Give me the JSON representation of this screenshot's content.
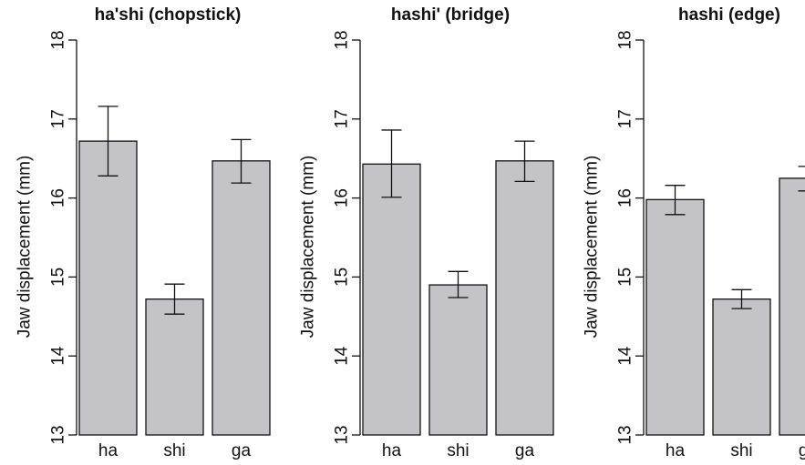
{
  "colors": {
    "bar_fill": "#c4c4c8",
    "bar_stroke": "#111111",
    "axis": "#111111",
    "error_bar": "#111111"
  },
  "chart_data": [
    {
      "type": "bar",
      "title": "ha'shi (chopstick)",
      "ylabel": "Jaw displacement (mm)",
      "xlabel": "",
      "ylim": [
        13,
        18
      ],
      "yticks": [
        13,
        14,
        15,
        16,
        17,
        18
      ],
      "tick_labels": [
        "13",
        "14",
        "15",
        "16",
        "17",
        "18"
      ],
      "categories": [
        "ha",
        "shi",
        "ga"
      ],
      "values": [
        16.72,
        14.72,
        16.47
      ],
      "error_low": [
        16.28,
        14.53,
        16.19
      ],
      "error_high": [
        17.16,
        14.91,
        16.74
      ],
      "grid": false
    },
    {
      "type": "bar",
      "title": "hashi' (bridge)",
      "ylabel": "Jaw displacement (mm)",
      "xlabel": "",
      "ylim": [
        13,
        18
      ],
      "yticks": [
        13,
        14,
        15,
        16,
        17,
        18
      ],
      "tick_labels": [
        "13",
        "14",
        "15",
        "16",
        "17",
        "18"
      ],
      "categories": [
        "ha",
        "shi",
        "ga"
      ],
      "values": [
        16.43,
        14.9,
        16.47
      ],
      "error_low": [
        16.01,
        14.74,
        16.21
      ],
      "error_high": [
        16.86,
        15.07,
        16.72
      ],
      "grid": false
    },
    {
      "type": "bar",
      "title": "hashi (edge)",
      "ylabel": "Jaw displacement (mm)",
      "xlabel": "",
      "ylim": [
        13,
        18
      ],
      "yticks": [
        13,
        14,
        15,
        16,
        17,
        18
      ],
      "tick_labels": [
        "13",
        "14",
        "15",
        "16",
        "17",
        "18"
      ],
      "categories": [
        "ha",
        "shi",
        "ga"
      ],
      "values": [
        15.98,
        14.72,
        16.25
      ],
      "error_low": [
        15.79,
        14.6,
        16.09
      ],
      "error_high": [
        16.16,
        14.84,
        16.4
      ],
      "grid": false
    }
  ]
}
